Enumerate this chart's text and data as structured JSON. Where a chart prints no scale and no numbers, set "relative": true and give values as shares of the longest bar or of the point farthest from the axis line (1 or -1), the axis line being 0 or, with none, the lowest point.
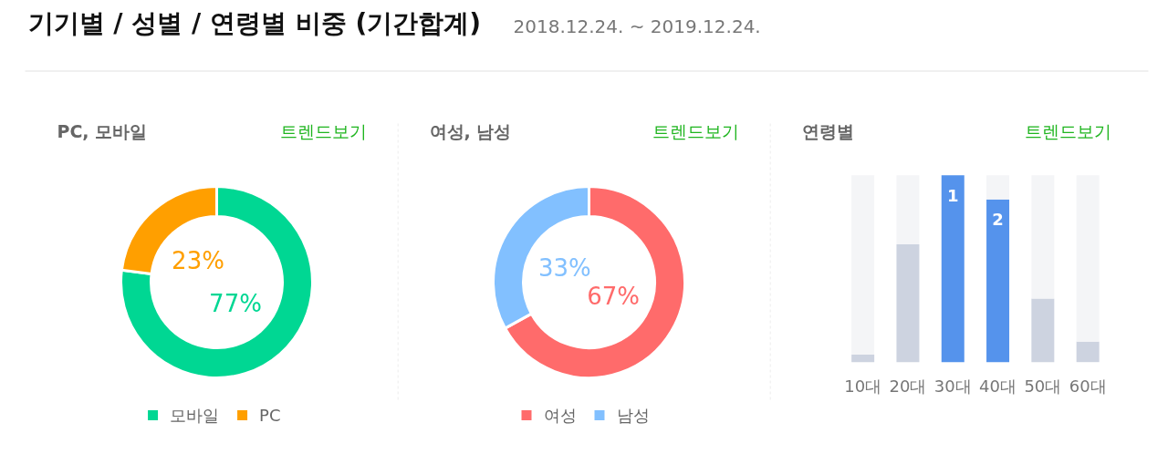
{
  "chart_data": [
    {
      "type": "other",
      "title": "기기별 / 성별 / 연령별 비중 (기간합계)",
      "subtitle": "2018.12.24. ~ 2019.12.24."
    },
    {
      "type": "donut",
      "title": "PC, 모바일",
      "annotations": [
        "트렌드보기"
      ],
      "categories": [
        "모바일",
        "PC"
      ],
      "values": [
        77,
        23
      ],
      "colors": [
        "#00d793",
        "#ff9f00"
      ],
      "value_labels": [
        "77%",
        "23%"
      ],
      "legend": "bottom"
    },
    {
      "type": "donut",
      "title": "여성, 남성",
      "annotations": [
        "트렌드보기"
      ],
      "categories": [
        "여성",
        "남성"
      ],
      "values": [
        67,
        33
      ],
      "colors": [
        "#ff6b6b",
        "#82c0ff"
      ],
      "value_labels": [
        "67%",
        "33%"
      ],
      "legend": "bottom"
    },
    {
      "type": "bar",
      "title": "연령별",
      "annotations": [
        "트렌드보기",
        {
          "text": "1",
          "x": "30대",
          "y": 1
        },
        {
          "text": "2",
          "x": "40대",
          "y": 0.87
        }
      ],
      "categories": [
        "10대",
        "20대",
        "30대",
        "40대",
        "50대",
        "60대"
      ],
      "relative": true,
      "stacked": true,
      "series": [
        {
          "colors": [
            "#cdd3e0",
            "#cdd3e0",
            "#5593ec",
            "#5593ec",
            "#cdd3e0",
            "#cdd3e0"
          ],
          "values": [
            0.04,
            0.63,
            1,
            0.87,
            0.34,
            0.11
          ]
        },
        {
          "color": "#f4f5f7",
          "values": [
            0.96,
            0.37,
            0,
            0.13,
            0.66,
            0.89
          ]
        }
      ]
    }
  ]
}
